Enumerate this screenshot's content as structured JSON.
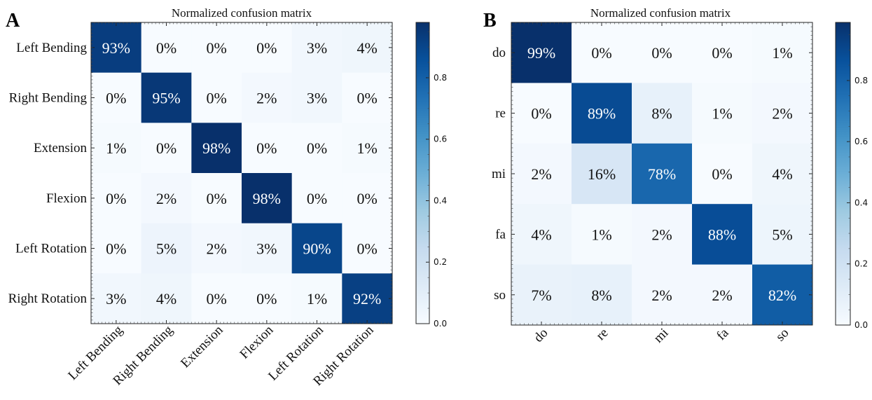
{
  "chart_data": [
    {
      "type": "heatmap",
      "panel_label": "A",
      "title": "Normalized confusion matrix",
      "rows": [
        "Left Bending",
        "Right Bending",
        "Extension",
        "Flexion",
        "Left Rotation",
        "Right Rotation"
      ],
      "cols": [
        "Left Bending",
        "Right Bending",
        "Extension",
        "Flexion",
        "Left Rotation",
        "Right Rotation"
      ],
      "values": [
        [
          93,
          0,
          0,
          0,
          3,
          4
        ],
        [
          0,
          95,
          0,
          2,
          3,
          0
        ],
        [
          1,
          0,
          98,
          0,
          0,
          1
        ],
        [
          0,
          2,
          0,
          98,
          0,
          0
        ],
        [
          0,
          5,
          2,
          3,
          90,
          0
        ],
        [
          3,
          4,
          0,
          0,
          1,
          92
        ]
      ],
      "value_format": "percent",
      "colormap": "Blues",
      "colorbar": {
        "min": 0.0,
        "max": 0.98,
        "ticks": [
          0.0,
          0.2,
          0.4,
          0.6,
          0.8
        ],
        "tick_labels": [
          "0.0",
          "0.2",
          "0.4",
          "0.6",
          "0.8"
        ]
      }
    },
    {
      "type": "heatmap",
      "panel_label": "B",
      "title": "Normalized confusion matrix",
      "rows": [
        "do",
        "re",
        "mi",
        "fa",
        "so"
      ],
      "cols": [
        "do",
        "re",
        "mi",
        "fa",
        "so"
      ],
      "values": [
        [
          99,
          0,
          0,
          0,
          1
        ],
        [
          0,
          89,
          8,
          1,
          2
        ],
        [
          2,
          16,
          78,
          0,
          4
        ],
        [
          4,
          1,
          2,
          88,
          5
        ],
        [
          7,
          8,
          2,
          2,
          82
        ]
      ],
      "value_format": "percent",
      "colormap": "Blues",
      "colorbar": {
        "min": 0.0,
        "max": 0.99,
        "ticks": [
          0.0,
          0.2,
          0.4,
          0.6,
          0.8
        ],
        "tick_labels": [
          "0.0",
          "0.2",
          "0.4",
          "0.6",
          "0.8"
        ]
      }
    }
  ]
}
